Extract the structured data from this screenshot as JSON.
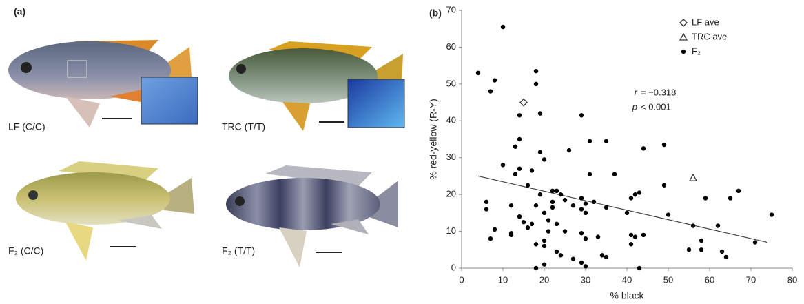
{
  "panel_a": {
    "label": "(a)",
    "fish": [
      "LF (C/C)",
      "TRC (T/T)",
      "F₂ (C/C)",
      "F₂ (T/T)"
    ]
  },
  "chart_data": {
    "type": "scatter",
    "panel_label": "(b)",
    "x_label": "% black",
    "y_label": "% red-yellow (R-Y)",
    "xlim": [
      0,
      80
    ],
    "xticks": [
      0,
      10,
      20,
      30,
      40,
      50,
      60,
      70,
      80
    ],
    "ylim": [
      0,
      70
    ],
    "yticks": [
      0,
      10,
      20,
      30,
      40,
      50,
      60,
      70
    ],
    "series": [
      {
        "name": "LF ave",
        "marker": "diamond",
        "color": "#333333",
        "x": [
          15
        ],
        "values": [
          45
        ]
      },
      {
        "name": "TRC ave",
        "marker": "triangle",
        "color": "#333333",
        "x": [
          56
        ],
        "values": [
          24.5
        ]
      },
      {
        "name": "F₂",
        "marker": "circle",
        "color": "#000000",
        "x": [
          4,
          10,
          7,
          8,
          6,
          6,
          8,
          7,
          10,
          12,
          12,
          12,
          13,
          13,
          14,
          14,
          14,
          15,
          14,
          16,
          16,
          17,
          17,
          18,
          18,
          18,
          18,
          18,
          19,
          19,
          19,
          20,
          20,
          20,
          20,
          20,
          21,
          21,
          22,
          22,
          22,
          23,
          23,
          23,
          24,
          24,
          25,
          25,
          26,
          27,
          27,
          29,
          29,
          29,
          29,
          29,
          30,
          30,
          30,
          30,
          31,
          31,
          32,
          33,
          34,
          35,
          35,
          35,
          37,
          40,
          41,
          41,
          41,
          42,
          42,
          43,
          43,
          44,
          44,
          49,
          49,
          50,
          55,
          56,
          58,
          58,
          59,
          62,
          63,
          64,
          65,
          67,
          71,
          75
        ],
        "values": [
          53,
          65.5,
          48,
          51,
          18,
          16,
          10.5,
          8,
          28,
          17,
          9.5,
          9,
          25.5,
          33,
          35,
          27,
          14,
          12.5,
          41.5,
          22.5,
          11,
          26.5,
          12,
          53.5,
          50,
          17,
          6.5,
          0,
          31.5,
          42,
          20,
          29.5,
          15,
          7.5,
          6,
          1,
          13,
          10,
          21,
          18,
          16.5,
          21,
          12,
          4.5,
          20,
          3.5,
          18.5,
          10,
          32,
          17,
          2.5,
          41.5,
          19,
          16,
          9.5,
          1.5,
          17.5,
          15,
          8,
          0.5,
          34.5,
          25.5,
          18,
          8.5,
          3.5,
          3,
          34.5,
          16.5,
          25.5,
          15,
          19,
          9,
          6.5,
          8.5,
          20,
          20.5,
          0,
          32.5,
          9,
          33.5,
          22.5,
          14.5,
          5,
          11.5,
          7.5,
          5,
          19,
          11.5,
          4.5,
          3,
          19,
          21,
          7,
          14.5
        ]
      }
    ],
    "fit": {
      "x": [
        4,
        74
      ],
      "values": [
        25,
        7
      ],
      "color": "#444444"
    },
    "annotation": {
      "symbol_r": "r",
      "r_text": "= −0.318",
      "symbol_p": "p",
      "p_text": "< 0.001"
    },
    "legend": "upper right"
  }
}
